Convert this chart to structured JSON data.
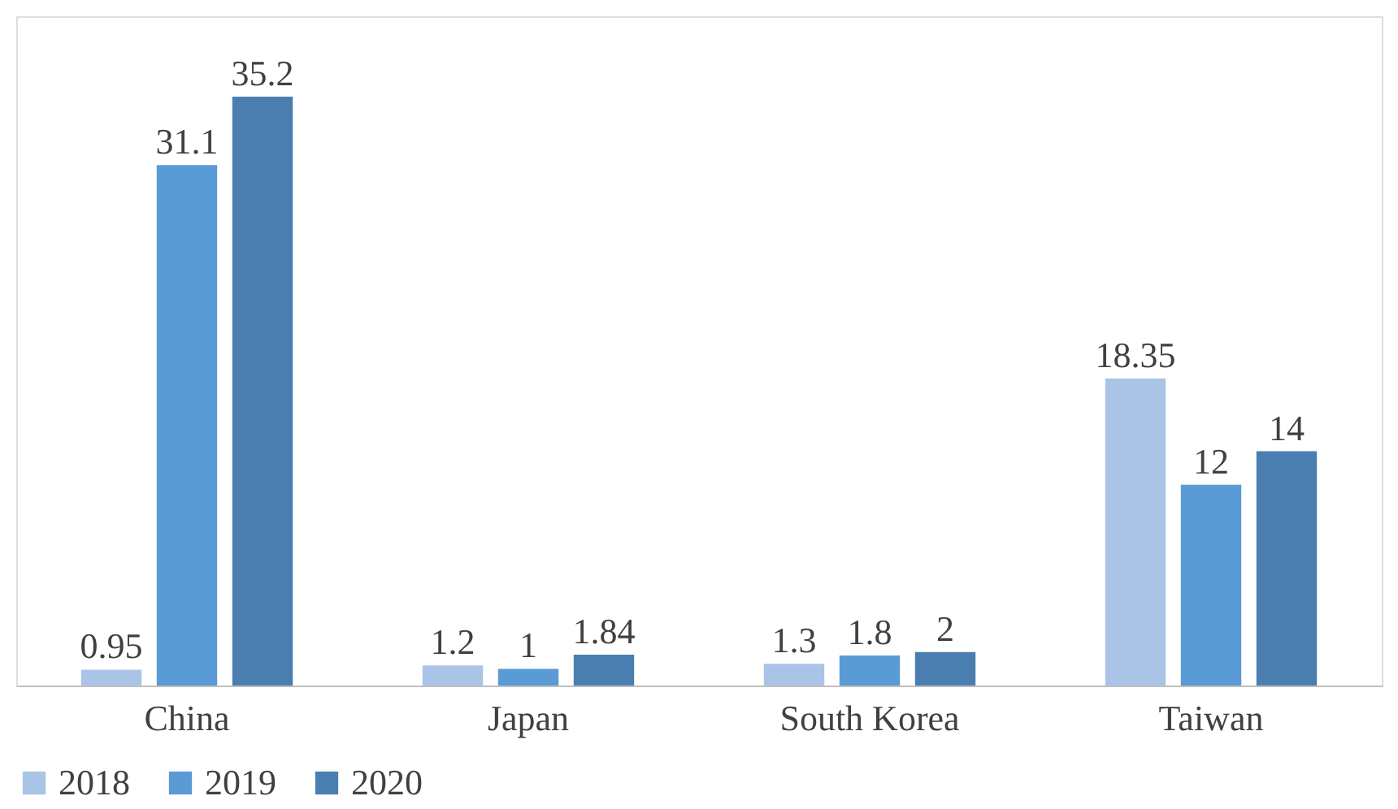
{
  "chart_data": {
    "type": "bar",
    "categories": [
      "China",
      "Japan",
      "South Korea",
      "Taiwan"
    ],
    "series": [
      {
        "name": "2018",
        "color": "#a9c4e6",
        "values": [
          0.95,
          1.2,
          1.3,
          18.35
        ]
      },
      {
        "name": "2019",
        "color": "#5b9bd5",
        "values": [
          31.1,
          1,
          1.8,
          12
        ]
      },
      {
        "name": "2020",
        "color": "#4a7eb0",
        "values": [
          35.2,
          1.84,
          2,
          14
        ]
      }
    ],
    "data_labels": true,
    "legend": "bottom"
  }
}
